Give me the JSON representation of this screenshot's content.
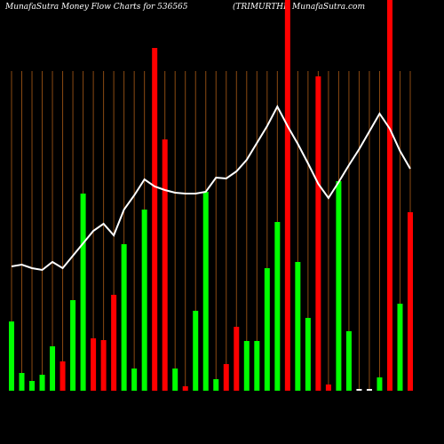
{
  "chart_data": {
    "type": "bar",
    "title": "MunafaSutra  Money Flow  Charts for 536565",
    "subtitle": "(TRIMURTHI) MunafaSutra.com",
    "categories": [
      null,
      null,
      null,
      null,
      null,
      null,
      null,
      null,
      null,
      null,
      null,
      null,
      null,
      null,
      null,
      null,
      null,
      null,
      null,
      null,
      null,
      null,
      null,
      null,
      null,
      null,
      null,
      null,
      null,
      null,
      null,
      null,
      null,
      null,
      null,
      null,
      null,
      null,
      null,
      null
    ],
    "values": [
      78,
      20,
      11,
      18,
      50,
      33,
      102,
      222,
      59,
      57,
      108,
      165,
      25,
      204,
      386,
      283,
      25,
      5,
      90,
      224,
      13,
      30,
      72,
      56,
      56,
      138,
      190,
      440,
      145,
      82,
      354,
      7,
      236,
      67,
      2,
      2,
      15,
      440,
      98,
      201
    ],
    "colors": [
      "#00ff00",
      "#00ff00",
      "#00ff00",
      "#00ff00",
      "#00ff00",
      "#ff0000",
      "#00ff00",
      "#00ff00",
      "#ff0000",
      "#ff0000",
      "#ff0000",
      "#00ff00",
      "#00ff00",
      "#00ff00",
      "#ff0000",
      "#ff0000",
      "#00ff00",
      "#ff0000",
      "#00ff00",
      "#00ff00",
      "#00ff00",
      "#ff0000",
      "#ff0000",
      "#00ff00",
      "#00ff00",
      "#00ff00",
      "#00ff00",
      "#ff0000",
      "#00ff00",
      "#00ff00",
      "#ff0000",
      "#ff0000",
      "#00ff00",
      "#00ff00",
      "#ffffff",
      "#ffffff",
      "#00ff00",
      "#ff0000",
      "#00ff00",
      "#ff0000"
    ],
    "line": {
      "color": "#ffffff",
      "values": [
        140,
        142,
        138,
        136,
        145,
        138,
        152,
        166,
        180,
        188,
        175,
        204,
        220,
        238,
        230,
        226,
        223,
        222,
        222,
        224,
        240,
        239,
        247,
        260,
        279,
        298,
        320,
        298,
        278,
        256,
        233,
        217,
        235,
        254,
        272,
        292,
        312,
        295,
        270,
        250
      ]
    },
    "ylim": [
      0,
      440
    ],
    "grid_color": "#8b4a12"
  }
}
